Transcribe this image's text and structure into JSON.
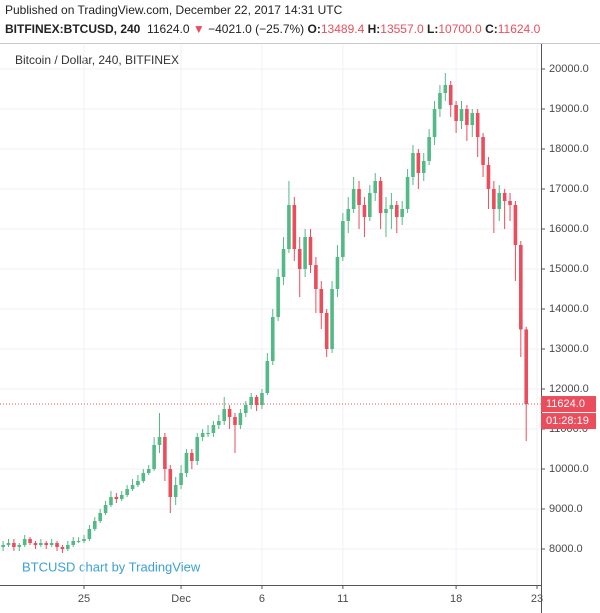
{
  "header": {
    "published": "Published on TradingView.com, December 22, 2017 14:31 UTC",
    "symbol": "BITFINEX:BTCUSD, 240",
    "last": "11624.0",
    "arrow": "▼",
    "change": "−4021.0 (−25.7%)",
    "o_label": "O:",
    "o": "13489.4",
    "h_label": "H:",
    "h": "13557.0",
    "l_label": "L:",
    "l": "10700.0",
    "c_label": "C:",
    "c": "11624.0"
  },
  "chart_data": {
    "type": "candlestick",
    "title": "Bitcoin / Dollar, 240, BITFINEX",
    "watermark": "BTCUSD chart by TradingView",
    "up_color": "#53b987",
    "down_color": "#eb4d5c",
    "grid": true,
    "categories": [
      null,
      null,
      null,
      null,
      null,
      null,
      null,
      null,
      null,
      null,
      null,
      null,
      null,
      null,
      null,
      "25",
      null,
      null,
      null,
      null,
      null,
      null,
      null,
      null,
      null,
      null,
      null,
      null,
      null,
      null,
      null,
      null,
      null,
      "Dec",
      null,
      null,
      null,
      null,
      null,
      null,
      null,
      null,
      null,
      null,
      null,
      null,
      null,
      null,
      "6",
      null,
      null,
      null,
      null,
      null,
      null,
      null,
      null,
      null,
      null,
      null,
      null,
      null,
      null,
      "11",
      null,
      null,
      null,
      null,
      null,
      null,
      null,
      null,
      null,
      null,
      null,
      null,
      null,
      null,
      null,
      null,
      null,
      null,
      null,
      null,
      "18",
      null,
      null,
      null,
      null,
      null,
      null,
      null,
      null,
      null,
      null,
      null,
      null,
      null,
      null,
      "23"
    ],
    "open": [
      8050,
      8100,
      8150,
      8050,
      8100,
      8250,
      8150,
      8100,
      8150,
      8100,
      8150,
      8050,
      8000,
      8100,
      8200,
      8200,
      8250,
      8500,
      8700,
      8900,
      9100,
      9300,
      9250,
      9350,
      9500,
      9600,
      9700,
      9900,
      10000,
      10600,
      10800,
      10000,
      9300,
      9600,
      9900,
      10400,
      10200,
      10800,
      10900,
      10900,
      11100,
      11200,
      11500,
      11300,
      11100,
      11400,
      11600,
      11800,
      11600,
      11900,
      12700,
      13800,
      14800,
      15500,
      16600,
      15500,
      15000,
      15800,
      15100,
      14500,
      13900,
      13000,
      14500,
      15300,
      16200,
      16500,
      17000,
      16600,
      16300,
      16900,
      17200,
      16400,
      16500,
      16600,
      16300,
      16500,
      17300,
      17900,
      17400,
      17700,
      18300,
      19000,
      19400,
      19600,
      19100,
      18700,
      19000,
      18600,
      18900,
      18300,
      17600,
      17000,
      16500,
      16900,
      16700,
      16600,
      15600,
      13489.4,
      null,
      null
    ],
    "high": [
      8200,
      8250,
      8250,
      8150,
      8350,
      8300,
      8200,
      8250,
      8200,
      8250,
      8200,
      8100,
      8200,
      8300,
      8300,
      8350,
      8600,
      8800,
      9000,
      9200,
      9450,
      9400,
      9450,
      9600,
      9750,
      9850,
      10000,
      10100,
      10800,
      11400,
      10900,
      10100,
      9800,
      10100,
      10500,
      10500,
      10900,
      11000,
      11100,
      11200,
      11350,
      11800,
      11600,
      11400,
      11500,
      11700,
      11900,
      11850,
      12000,
      12900,
      14000,
      15000,
      15800,
      17200,
      16800,
      15800,
      16000,
      16000,
      15300,
      14700,
      14000,
      14700,
      15600,
      16400,
      16800,
      17300,
      17200,
      16800,
      17100,
      17400,
      17300,
      16800,
      16900,
      16700,
      16700,
      17500,
      18100,
      18000,
      17900,
      18500,
      19200,
      19600,
      19900,
      19700,
      19200,
      19200,
      19100,
      19000,
      19000,
      18400,
      17800,
      17200,
      17100,
      17000,
      16900,
      16700,
      15700,
      13557,
      null,
      null
    ],
    "low": [
      7950,
      8050,
      7950,
      7950,
      8050,
      8100,
      8000,
      8050,
      8000,
      8050,
      7950,
      7900,
      7950,
      8050,
      8150,
      8150,
      8200,
      8450,
      8650,
      8850,
      9050,
      9150,
      9200,
      9300,
      9450,
      9550,
      9650,
      9850,
      9950,
      10400,
      9700,
      8900,
      9100,
      9500,
      9800,
      10000,
      10100,
      10700,
      10800,
      10800,
      11000,
      11100,
      11000,
      10400,
      11000,
      11300,
      11500,
      11450,
      11500,
      11850,
      12600,
      13700,
      14600,
      15400,
      15200,
      14300,
      14800,
      14900,
      13900,
      13500,
      12800,
      12900,
      14300,
      15200,
      15900,
      16400,
      16000,
      15800,
      16200,
      16700,
      16000,
      15800,
      16000,
      15900,
      16100,
      16400,
      17100,
      17000,
      17200,
      17600,
      18100,
      18800,
      19200,
      18800,
      18400,
      18500,
      18200,
      18300,
      17800,
      17300,
      16500,
      15900,
      16200,
      16000,
      16200,
      14700,
      12800,
      10700,
      null,
      null
    ],
    "close": [
      8100,
      8150,
      8050,
      8100,
      8250,
      8150,
      8100,
      8150,
      8100,
      8150,
      8050,
      8000,
      8100,
      8200,
      8200,
      8250,
      8500,
      8700,
      8900,
      9100,
      9300,
      9250,
      9350,
      9500,
      9600,
      9700,
      9900,
      10000,
      10600,
      10800,
      10000,
      9300,
      9600,
      9900,
      10400,
      10200,
      10800,
      10900,
      10900,
      11100,
      11200,
      11500,
      11300,
      11100,
      11400,
      11600,
      11800,
      11600,
      11900,
      12700,
      13800,
      14800,
      15500,
      16600,
      15500,
      15000,
      15800,
      15100,
      14500,
      13900,
      13000,
      14500,
      15300,
      16200,
      16500,
      17000,
      16600,
      16300,
      16900,
      17200,
      16400,
      16500,
      16600,
      16300,
      16500,
      17300,
      17900,
      17400,
      17700,
      18300,
      19000,
      19400,
      19600,
      19100,
      18700,
      19000,
      18600,
      18900,
      18300,
      17600,
      17000,
      16500,
      16900,
      16700,
      16600,
      15600,
      13489.4,
      11624,
      null,
      null
    ],
    "ylim": [
      7100,
      20600
    ],
    "yticks": [
      {
        "value": 8000,
        "label": "8000.0"
      },
      {
        "value": 9000,
        "label": "9000.0"
      },
      {
        "value": 10000,
        "label": "10000.0"
      },
      {
        "value": 11000,
        "label": "11000.0"
      },
      {
        "value": 12000,
        "label": "12000.0"
      },
      {
        "value": 13000,
        "label": "13000.0"
      },
      {
        "value": 14000,
        "label": "14000.0"
      },
      {
        "value": 15000,
        "label": "15000.0"
      },
      {
        "value": 16000,
        "label": "16000.0"
      },
      {
        "value": 17000,
        "label": "17000.0"
      },
      {
        "value": 18000,
        "label": "18000.0"
      },
      {
        "value": 19000,
        "label": "19000.0"
      },
      {
        "value": 20000,
        "label": "20000.0"
      }
    ],
    "last_price": {
      "value": 11624,
      "label": "11624.0"
    },
    "countdown": "01:28:19"
  }
}
